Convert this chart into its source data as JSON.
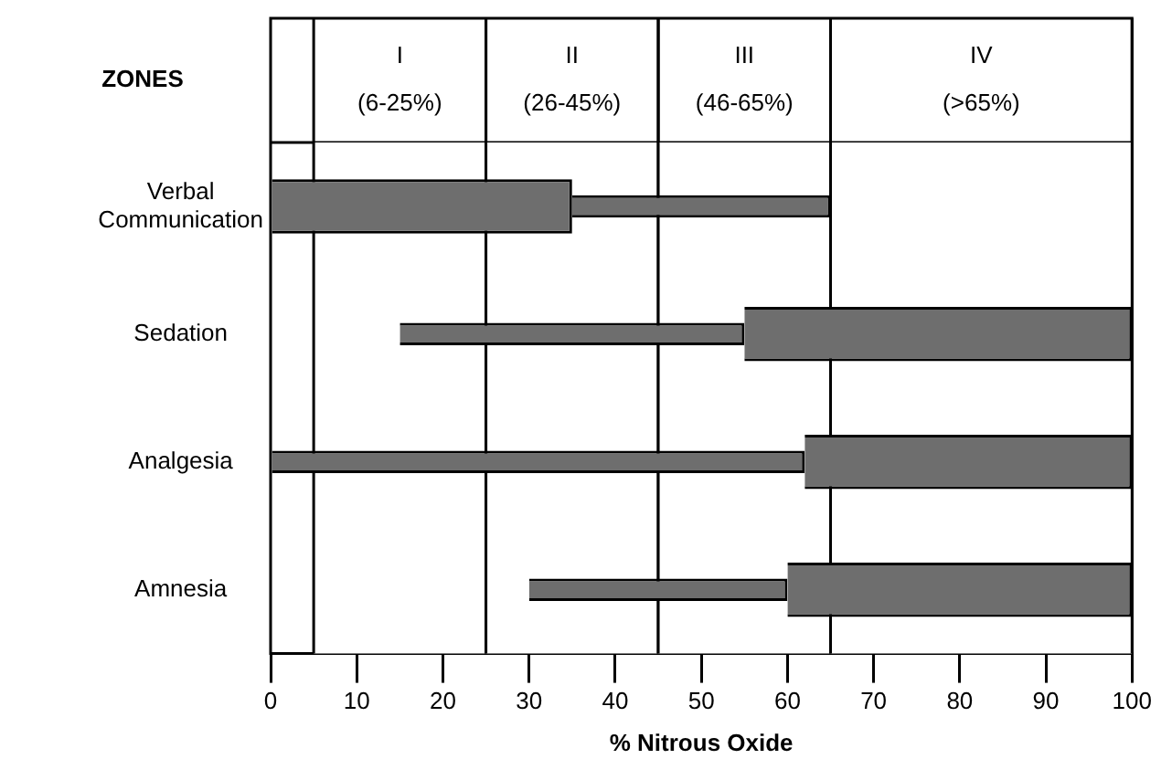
{
  "chart_data": {
    "type": "bar",
    "orientation": "horizontal",
    "xlabel": "% Nitrous Oxide",
    "categories": [
      "Verbal Communication",
      "Sedation",
      "Analgesia",
      "Amnesia"
    ],
    "series": [
      {
        "type": "bar",
        "color": "#6e6e6e",
        "base": [
          0,
          55,
          62,
          60
        ],
        "values": [
          35,
          45,
          38,
          40
        ]
      },
      {
        "type": "bar",
        "color": "#6e6e6e",
        "base": [
          35,
          15,
          0,
          30
        ],
        "values": [
          30,
          40,
          62,
          30
        ]
      }
    ],
    "xlim": [
      0,
      100
    ],
    "xticks": [
      0,
      10,
      20,
      30,
      40,
      50,
      60,
      70,
      80,
      90,
      100
    ],
    "bands": [
      {
        "axis": "x",
        "from": 5,
        "to": 25,
        "label": "I\n(6-25%)",
        "color": "#ffffff"
      },
      {
        "axis": "x",
        "from": 25,
        "to": 45,
        "label": "II\n(26-45%)",
        "color": "#ffffff"
      },
      {
        "axis": "x",
        "from": 45,
        "to": 65,
        "label": "III\n(46-65%)",
        "color": "#ffffff"
      },
      {
        "axis": "x",
        "from": 65,
        "to": 100,
        "label": "IV\n(>65%)",
        "color": "#ffffff"
      }
    ],
    "annotations": [
      "ZONES"
    ],
    "grid": false,
    "legend": false
  }
}
